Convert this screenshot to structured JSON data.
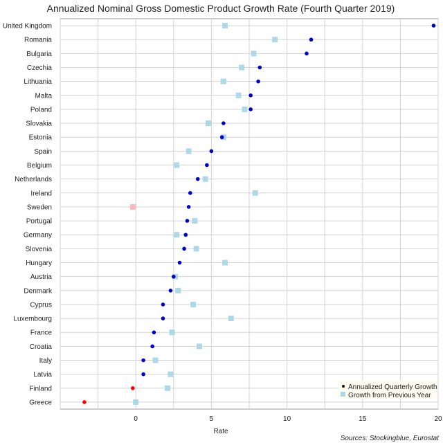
{
  "chart_data": {
    "type": "scatter",
    "title": "Annualized Nominal Gross Domestic Product Growth Rate (Fourth Quarter 2019)",
    "xlabel": "Rate",
    "ylabel": "",
    "xlim": [
      -5,
      20
    ],
    "x_ticks": [
      0,
      5,
      10,
      15,
      20
    ],
    "grid": true,
    "legend_position": "bottom-right",
    "source": "Sources: Stockingblue, Eurostat",
    "colors": {
      "quarterly_positive": "#0000cd",
      "quarterly_negative": "#ff0000",
      "yearly_positive": "#add8e6",
      "yearly_negative": "#ffb6c1",
      "grid": "#d3d3d3"
    },
    "categories": [
      "United Kingdom",
      "Romania",
      "Bulgaria",
      "Czechia",
      "Lithuania",
      "Malta",
      "Poland",
      "Slovakia",
      "Estonia",
      "Spain",
      "Belgium",
      "Netherlands",
      "Ireland",
      "Sweden",
      "Portugal",
      "Germany",
      "Slovenia",
      "Hungary",
      "Austria",
      "Denmark",
      "Cyprus",
      "Luxembourg",
      "France",
      "Croatia",
      "Italy",
      "Latvia",
      "Finland",
      "Greece"
    ],
    "series": [
      {
        "name": "Annualized Quarterly Growth",
        "marker": "circle",
        "values": [
          19.7,
          11.6,
          11.3,
          8.2,
          8.1,
          7.6,
          7.6,
          5.8,
          5.7,
          5.0,
          4.7,
          4.1,
          3.6,
          3.5,
          3.4,
          3.3,
          3.2,
          2.9,
          2.5,
          2.3,
          1.8,
          1.8,
          1.2,
          1.1,
          0.5,
          0.5,
          -0.2,
          -3.4
        ]
      },
      {
        "name": "Growth from Previous Year",
        "marker": "square",
        "values": [
          5.9,
          9.2,
          7.8,
          7.0,
          5.8,
          6.8,
          7.2,
          4.8,
          5.8,
          3.5,
          2.7,
          4.6,
          7.9,
          -0.2,
          3.9,
          2.7,
          4.0,
          5.9,
          2.6,
          2.8,
          3.8,
          6.3,
          2.4,
          4.2,
          1.3,
          2.3,
          2.1,
          0.0
        ]
      }
    ]
  }
}
